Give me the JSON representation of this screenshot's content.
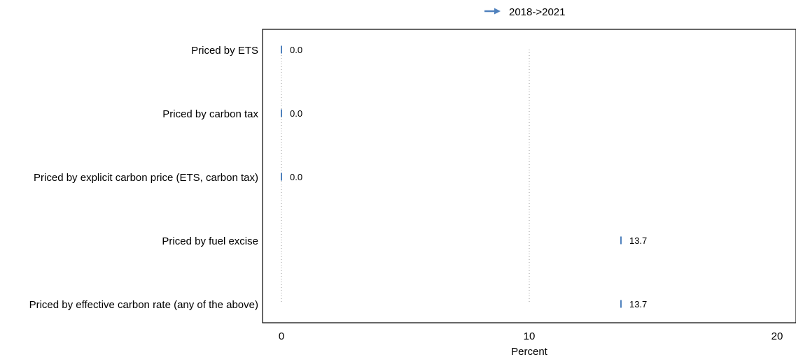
{
  "chart_data": {
    "type": "dot-arrow",
    "xlabel": "Percent",
    "xlim": [
      0,
      20
    ],
    "xticks": [
      "0",
      "10",
      "20"
    ],
    "grid_x": true,
    "legend_position": "top-center",
    "series": [
      {
        "name": "2018->2021",
        "color": "#4f81bd",
        "points": [
          {
            "category": "Priced by ETS",
            "from": 0.0,
            "to": 0.0,
            "label": "0.0"
          },
          {
            "category": "Priced by carbon tax",
            "from": 0.0,
            "to": 0.0,
            "label": "0.0"
          },
          {
            "category": "Priced by explicit carbon price (ETS, carbon tax)",
            "from": 0.0,
            "to": 0.0,
            "label": "0.0"
          },
          {
            "category": "Priced by fuel excise",
            "from": 13.7,
            "to": 13.7,
            "label": "13.7"
          },
          {
            "category": "Priced by effective carbon rate (any of the above)",
            "from": 13.7,
            "to": 13.7,
            "label": "13.7"
          }
        ]
      }
    ]
  }
}
